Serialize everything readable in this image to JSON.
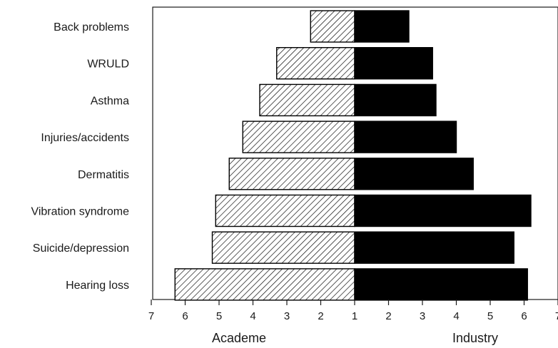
{
  "chart_data": {
    "type": "bar",
    "orientation": "horizontal-diverging",
    "categories": [
      "Back problems",
      "WRULD",
      "Asthma",
      "Injuries/accidents",
      "Dermatitis",
      "Vibration syndrome",
      "Suicide/depression",
      "Hearing loss"
    ],
    "series": [
      {
        "name": "Academe",
        "values": [
          2.3,
          3.3,
          3.8,
          4.3,
          4.7,
          5.1,
          5.2,
          6.3
        ],
        "fill": "hatched"
      },
      {
        "name": "Industry",
        "values": [
          2.6,
          3.3,
          3.4,
          4.0,
          4.5,
          6.2,
          5.7,
          6.1
        ],
        "fill": "#000000"
      }
    ],
    "x_ticks_left": [
      "7",
      "6",
      "5",
      "4",
      "3",
      "2",
      "1"
    ],
    "x_ticks_right": [
      "1",
      "2",
      "3",
      "4",
      "5",
      "6",
      "7"
    ],
    "xlim": [
      1,
      7
    ],
    "side_labels": {
      "left": "Academe",
      "right": "Industry"
    },
    "grid": false,
    "colors": {
      "industry": "#000000",
      "academe_hatch": "#000000",
      "background": "#ffffff"
    }
  }
}
